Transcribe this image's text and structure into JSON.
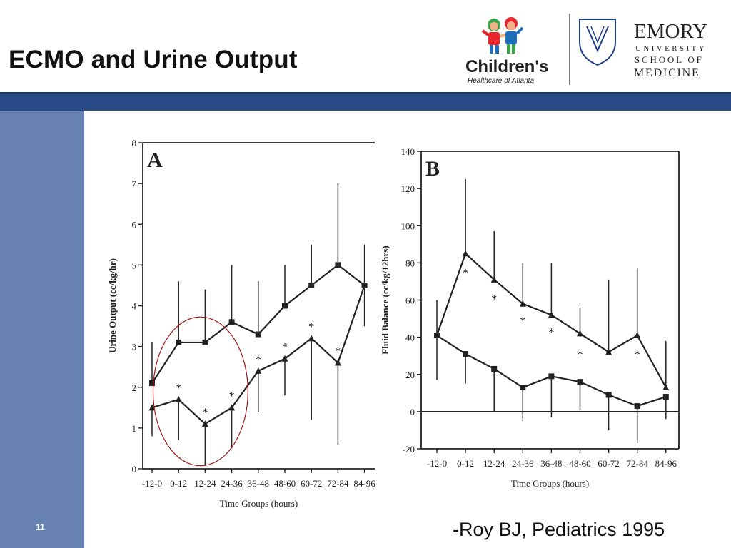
{
  "slide": {
    "title": "ECMO and Urine Output",
    "citation": "-Roy BJ,  Pediatrics 1995",
    "page_number": "11",
    "colors": {
      "top_bar": "#274a86",
      "left_bar": "#6782b3",
      "circle": "#a01818"
    }
  },
  "logos": {
    "childrens_name": "Children's",
    "childrens_sub": "Healthcare of Atlanta",
    "emory_name": "EMORY",
    "emory_line2": "UNIVERSITY",
    "emory_line3": "SCHOOL OF",
    "emory_line4": "MEDICINE"
  },
  "chart_data": [
    {
      "panel": "A",
      "type": "line",
      "xlabel": "Time Groups (hours)",
      "ylabel": "Urine Output (cc/kg/hr)",
      "ylim": [
        0,
        8
      ],
      "yticks": [
        0,
        1,
        2,
        3,
        4,
        5,
        6,
        7,
        8
      ],
      "categories": [
        "-12-0",
        "0-12",
        "12-24",
        "24-36",
        "36-48",
        "48-60",
        "60-72",
        "72-84",
        "84-96"
      ],
      "series": [
        {
          "marker": "square",
          "values": [
            2.1,
            3.1,
            3.1,
            3.6,
            3.3,
            4.0,
            4.5,
            5.0,
            4.5
          ],
          "error_upper": [
            3.1,
            4.6,
            4.4,
            5.0,
            4.6,
            5.0,
            5.5,
            7.0,
            5.5
          ]
        },
        {
          "marker": "triangle",
          "values": [
            1.5,
            1.7,
            1.1,
            1.5,
            2.4,
            2.7,
            3.2,
            2.6,
            4.5
          ],
          "error_lower": [
            0.8,
            0.7,
            0.1,
            0.5,
            1.4,
            1.8,
            1.2,
            0.6,
            3.5
          ]
        }
      ],
      "asterisks": [
        {
          "x": "0-12",
          "y": 2.0
        },
        {
          "x": "12-24",
          "y": 1.4
        },
        {
          "x": "24-36",
          "y": 1.8
        },
        {
          "x": "36-48",
          "y": 2.7
        },
        {
          "x": "48-60",
          "y": 3.0
        },
        {
          "x": "60-72",
          "y": 3.5
        },
        {
          "x": "72-84",
          "y": 2.9
        }
      ],
      "annotation": "circle highlighting 0-12 to 24-36"
    },
    {
      "panel": "B",
      "type": "line",
      "xlabel": "Time Groups (hours)",
      "ylabel": "Fluid Balance (cc/kg/12hrs)",
      "ylim": [
        -20,
        140
      ],
      "yticks": [
        -20,
        0,
        20,
        40,
        60,
        80,
        100,
        120,
        140
      ],
      "categories": [
        "-12-0",
        "0-12",
        "12-24",
        "24-36",
        "36-48",
        "48-60",
        "60-72",
        "72-84",
        "84-96"
      ],
      "series": [
        {
          "marker": "triangle",
          "values": [
            41,
            85,
            71,
            58,
            52,
            42,
            32,
            41,
            13
          ],
          "error_upper": [
            60,
            125,
            97,
            80,
            80,
            56,
            71,
            77,
            38
          ]
        },
        {
          "marker": "square",
          "values": [
            41,
            31,
            23,
            13,
            19,
            16,
            9,
            3,
            8
          ],
          "error_lower": [
            17,
            15,
            0,
            -5,
            -3,
            1,
            -10,
            -17,
            -4
          ]
        }
      ],
      "asterisks": [
        {
          "x": "0-12",
          "y": 75
        },
        {
          "x": "12-24",
          "y": 61
        },
        {
          "x": "24-36",
          "y": 49
        },
        {
          "x": "36-48",
          "y": 43
        },
        {
          "x": "48-60",
          "y": 31
        },
        {
          "x": "72-84",
          "y": 31
        }
      ]
    }
  ]
}
